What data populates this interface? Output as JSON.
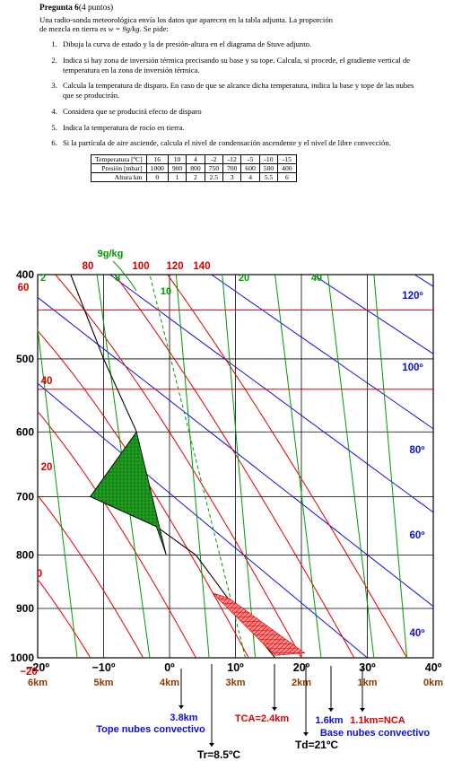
{
  "document": {
    "title": "Pregunta 6",
    "points": "(4 puntos)",
    "intro_line1": "Una radio-sonda meteorológica envía los datos que aparecen en la tabla adjunta. La proporción",
    "intro_line2": "de mezcla en tierra es ",
    "intro_formula": "w = 9g/kg",
    "intro_tail": ". Se pide:",
    "items": [
      "Dibuja la curva de estado y la de presión-altura en el diagrama de Stuve adjunto.",
      "Indica si hay zona de inversión térmica precisando su base y su tope. Calcula, si procede, el gradiente vertical de temperatura en la zona de inversión térmica.",
      "Calcula la temperatura de disparo. En caso de que se alcance dicha temperatura, indica la base y tope de las nubes que se producirán.",
      "Considera que se producirá efecto de disparo",
      "Indica la temperatura de rocío en tierra.",
      "Si la partícula de aire asciende, calcula el nivel de condensación ascendente y el nivel de libre convección."
    ],
    "table": {
      "rows": [
        {
          "label": "Temperatura [ºC]",
          "values": [
            "16",
            "10",
            "4",
            "-2",
            "-12",
            "-5",
            "-10",
            "-15"
          ]
        },
        {
          "label": "Presión [mbar]",
          "values": [
            "1000",
            "900",
            "800",
            "750",
            "700",
            "600",
            "500",
            "400"
          ]
        },
        {
          "label": "Altura  km",
          "values": [
            "0",
            "1",
            "2",
            "2.5",
            "3",
            "4",
            "5.5",
            "6"
          ]
        }
      ]
    }
  },
  "chart_data": {
    "type": "line",
    "title": "",
    "x_range": [
      -20,
      40
    ],
    "pressure_range": [
      400,
      1000
    ],
    "pressure_ticks": [
      "400",
      "500",
      "600",
      "700",
      "800",
      "900",
      "1000"
    ],
    "temperature_ticks": [
      "−20º",
      "−10º",
      "0º",
      "10º",
      "20º",
      "30º",
      "40º"
    ],
    "height_ticks": [
      "6km",
      "5km",
      "4km",
      "3km",
      "2km",
      "1km",
      "0km"
    ],
    "dry_adiabat_labels": [
      "120º",
      "100º",
      "80º",
      "60º",
      "40º"
    ],
    "moist_adiabat_labels": [
      "140",
      "120",
      "100",
      "80",
      "60",
      "40",
      "20",
      "0",
      "−20"
    ],
    "mixing_ratio_labels": [
      "2",
      "8",
      "10",
      "20",
      "40"
    ],
    "mixing_ratio_annotation": "9g/kg",
    "sounding": {
      "temperature_c": [
        16,
        10,
        4,
        -2,
        -12,
        -5,
        -10,
        -15
      ],
      "pressure_mbar": [
        1000,
        900,
        800,
        750,
        700,
        600,
        500,
        400
      ]
    },
    "annotations": [
      "3.8km",
      "Tope nubes convectivo",
      "TCA=2.4km",
      "1.6km",
      "1.1km=NCA",
      "Base nubes convectivo",
      "Tr=8.5ºC",
      "Td=21ºC"
    ],
    "colors": {
      "dry_adiabat": "#1010dd",
      "moist_adiabat": "#dd0000",
      "mixing_ratio": "#009900",
      "sounding": "#000000",
      "inversion_fill": "#1aa81a",
      "cloud_fill": "#ff7777",
      "height_label": "#8b3a00"
    }
  }
}
